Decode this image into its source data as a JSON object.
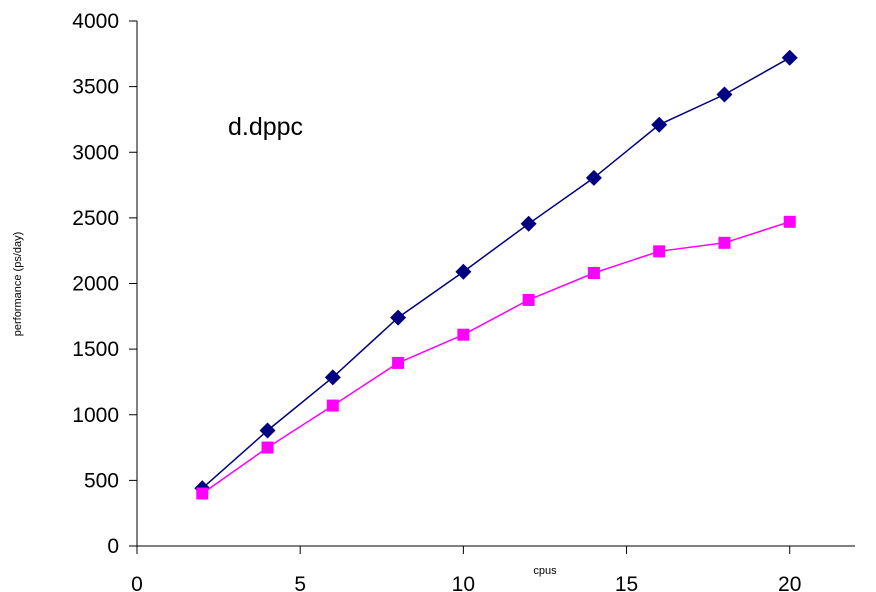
{
  "chart_data": {
    "type": "line",
    "title": "",
    "annotation": "d.dppc",
    "xlabel": "cpus",
    "ylabel": "performance (ps/day)",
    "xlim": [
      0,
      22
    ],
    "ylim": [
      0,
      4000
    ],
    "xticks": [
      0,
      5,
      10,
      15,
      20
    ],
    "yticks": [
      0,
      500,
      1000,
      1500,
      2000,
      2500,
      3000,
      3500,
      4000
    ],
    "grid": false,
    "legend": "none",
    "x": [
      2,
      4,
      6,
      8,
      10,
      12,
      14,
      16,
      18,
      20
    ],
    "series": [
      {
        "color": "#000080",
        "marker": "diamond",
        "values": [
          440,
          880,
          1285,
          1740,
          2090,
          2455,
          2805,
          3210,
          3440,
          3720
        ]
      },
      {
        "color": "#ff00ff",
        "marker": "square",
        "values": [
          400,
          750,
          1070,
          1395,
          1610,
          1875,
          2080,
          2245,
          2310,
          2470
        ]
      }
    ]
  }
}
